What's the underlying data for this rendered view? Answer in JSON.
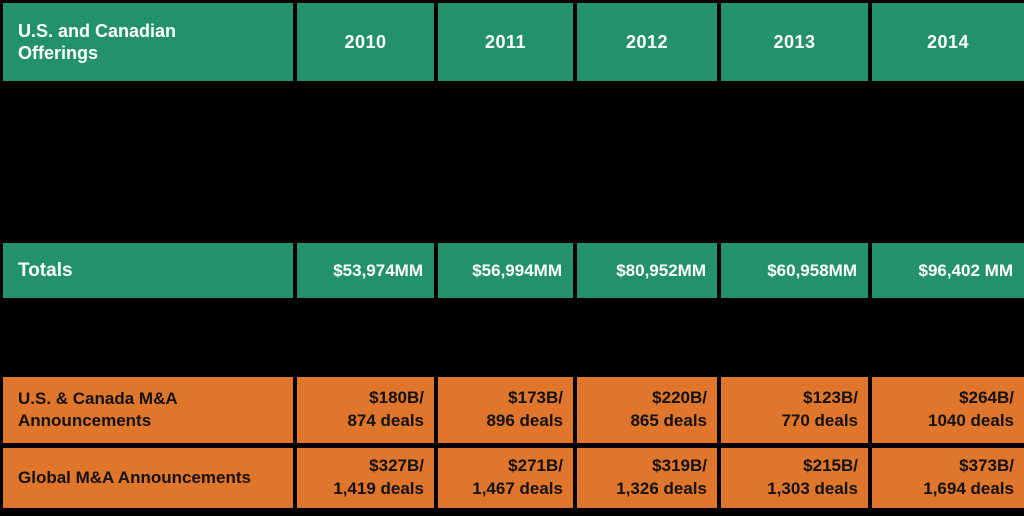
{
  "chart_data": {
    "type": "table",
    "title": "U.S. and Canadian Offerings",
    "columns": [
      "U.S. and Canadian Offerings",
      "2010",
      "2011",
      "2012",
      "2013",
      "2014"
    ],
    "rows": [
      {
        "label": "Totals",
        "values": [
          "$53,974MM",
          "$56,994MM",
          "$80,952MM",
          "$60,958MM",
          "$96,402 MM"
        ]
      },
      {
        "label": "U.S. & Canada M&A Announcements",
        "values": [
          "$180B/ 874 deals",
          "$173B/ 896 deals",
          "$220B/ 865 deals",
          "$123B/ 770 deals",
          "$264B/ 1040 deals"
        ]
      },
      {
        "label": "Global M&A Announcements",
        "values": [
          "$327B/ 1,419 deals",
          "$271B/ 1,467 deals",
          "$319B/ 1,326 deals",
          "$215B/ 1,303 deals",
          "$373B/ 1,694 deals"
        ]
      }
    ],
    "layout_notes": "Two horizontal bands of the table (between header and Totals, and between Totals and the M&A rows) are fully blacked out / redacted"
  },
  "ui": {
    "header": {
      "label": "U.S. and Canadian Offerings",
      "years": [
        "2010",
        "2011",
        "2012",
        "2013",
        "2014"
      ]
    },
    "totals": {
      "label": "Totals",
      "values": [
        "$53,974MM",
        "$56,994MM",
        "$80,952MM",
        "$60,958MM",
        "$96,402 MM"
      ]
    },
    "ma": [
      {
        "label": "U.S. & Canada M&A Announcements",
        "values": [
          {
            "amount": "$180B/",
            "deals": "874 deals"
          },
          {
            "amount": "$173B/",
            "deals": "896 deals"
          },
          {
            "amount": "$220B/",
            "deals": "865 deals"
          },
          {
            "amount": "$123B/",
            "deals": "770 deals"
          },
          {
            "amount": "$264B/",
            "deals": "1040 deals"
          }
        ]
      },
      {
        "label": "Global M&A Announcements",
        "values": [
          {
            "amount": "$327B/",
            "deals": "1,419 deals"
          },
          {
            "amount": "$271B/",
            "deals": "1,467 deals"
          },
          {
            "amount": "$319B/",
            "deals": "1,326 deals"
          },
          {
            "amount": "$215B/",
            "deals": "1,303 deals"
          },
          {
            "amount": "$373B/",
            "deals": "1,694 deals"
          }
        ]
      }
    ],
    "colors": {
      "green": "#23926A",
      "orange": "#E0762C",
      "background": "#000000",
      "header_text": "#FFFFFF",
      "orange_row_text": "#121212"
    }
  }
}
